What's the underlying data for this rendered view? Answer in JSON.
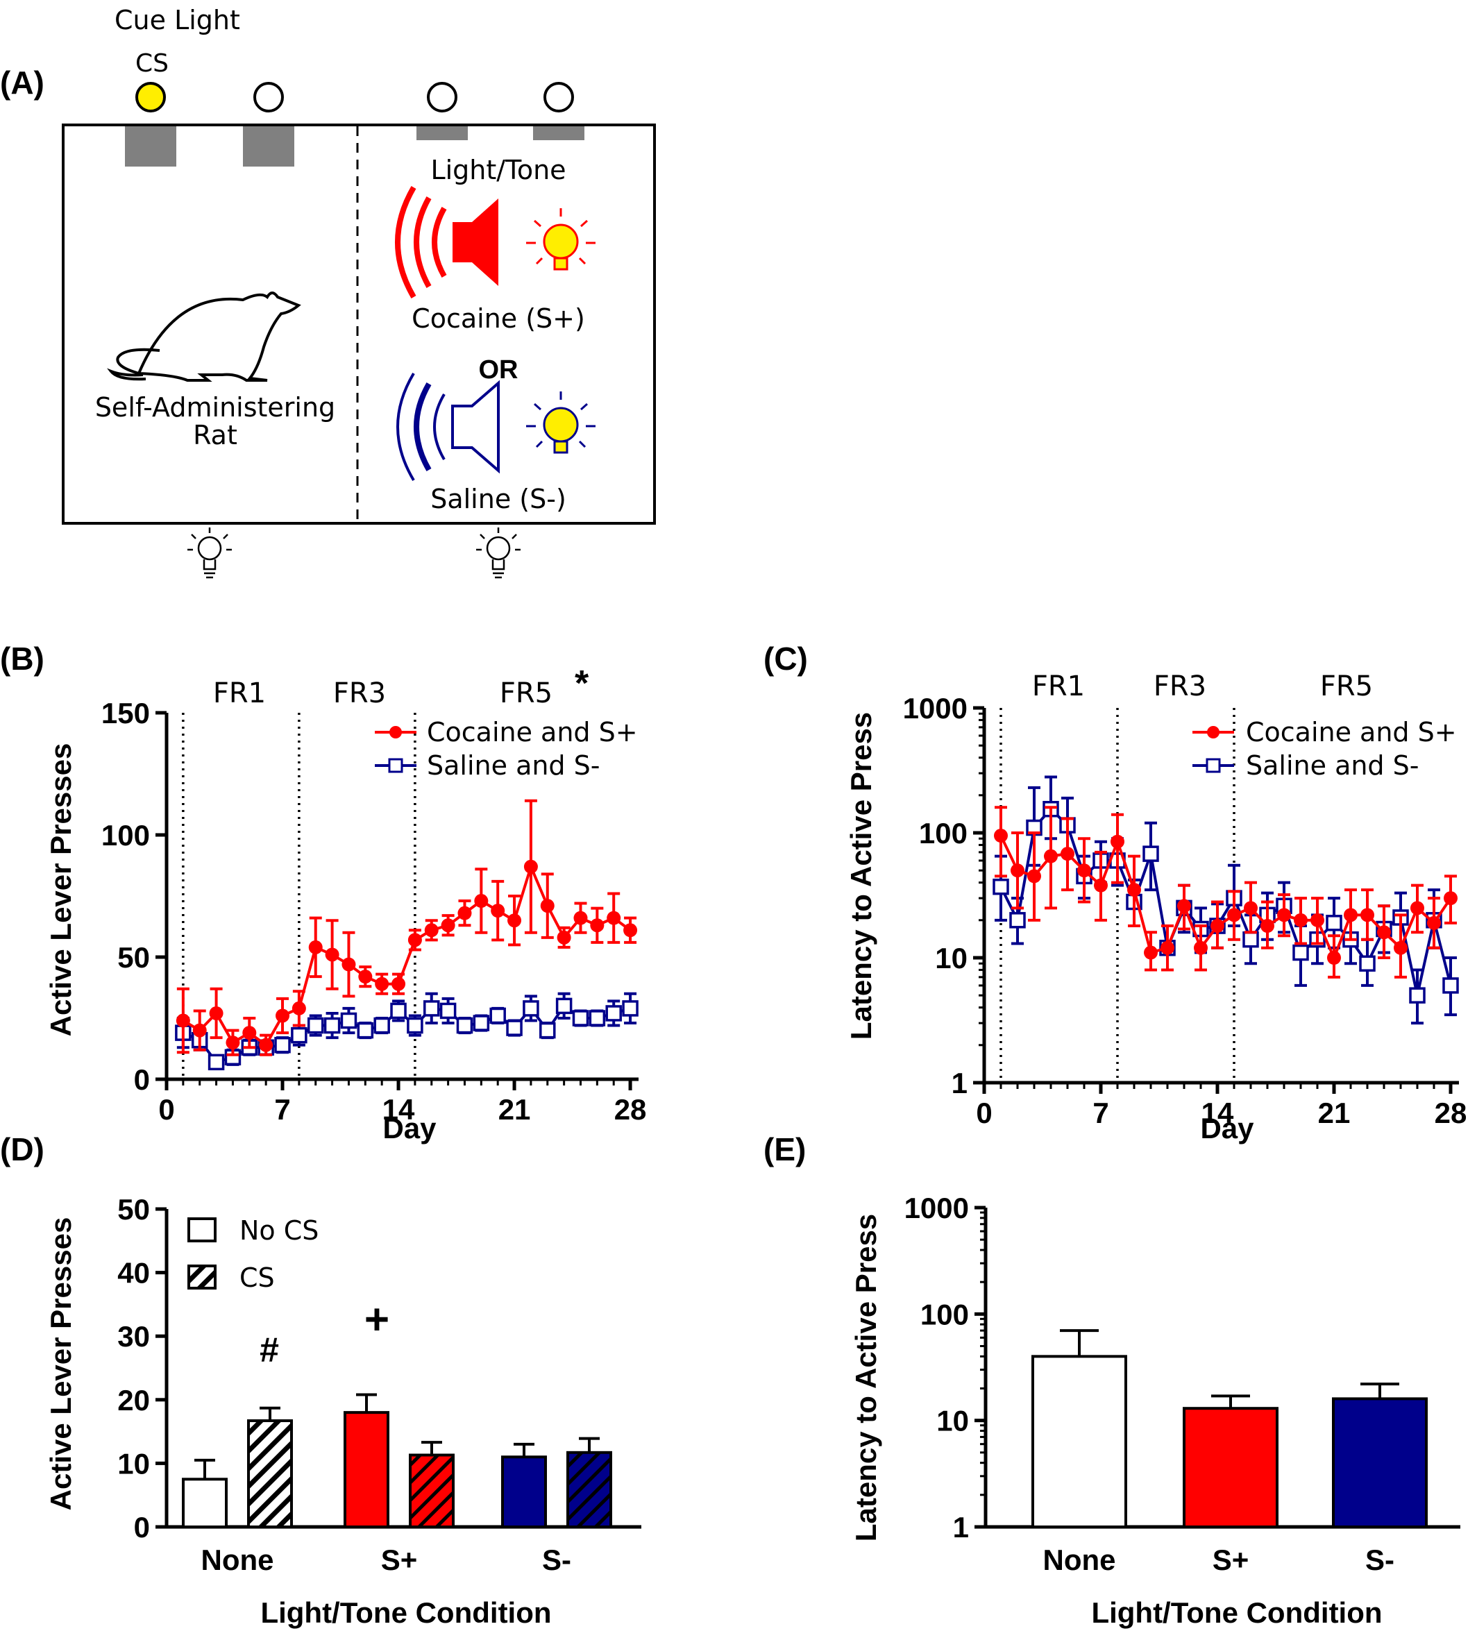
{
  "panel_a": {
    "label": "(A)",
    "cue_light_label": "Cue Light",
    "cs_label": "CS",
    "light_tone_label": "Light/Tone",
    "cocaine_label": "Cocaine (S+)",
    "or_label": "OR",
    "saline_label": "Saline (S-)",
    "rat_label_line1": "Self-Administering",
    "rat_label_line2": "Rat",
    "icons": [
      "speaker-icon",
      "lightbulb-icon",
      "rat-icon"
    ],
    "colors": {
      "cue_on": "#ffee00",
      "cocaine": "#ff0000",
      "saline": "#00008b"
    }
  },
  "chart_data": [
    {
      "panel": "(B)",
      "type": "line",
      "xlabel": "Day",
      "ylabel": "Active Lever Presses",
      "xlim": [
        0,
        28.5
      ],
      "ylim": [
        0,
        150
      ],
      "xticks": [
        0,
        7,
        14,
        21,
        28
      ],
      "yticks": [
        0,
        50,
        100,
        150
      ],
      "phases": [
        {
          "label": "FR1",
          "start": 1
        },
        {
          "label": "FR3",
          "start": 8
        },
        {
          "label": "FR5",
          "start": 15
        }
      ],
      "annotation": "*",
      "legend": "top-right",
      "series": [
        {
          "name": "Cocaine and S+",
          "color": "#ff0000",
          "marker": "filled-circle",
          "x": [
            1,
            2,
            3,
            4,
            5,
            6,
            7,
            8,
            9,
            10,
            11,
            12,
            13,
            14,
            15,
            16,
            17,
            18,
            19,
            20,
            21,
            22,
            23,
            24,
            25,
            26,
            27,
            28
          ],
          "values": [
            24,
            20,
            27,
            15,
            19,
            14,
            26,
            29,
            54,
            51,
            47,
            42,
            39,
            39,
            57,
            61,
            63,
            68,
            73,
            69,
            65,
            87,
            71,
            58,
            66,
            63,
            66,
            61
          ],
          "errors": [
            13,
            8,
            10,
            5,
            6,
            4,
            7,
            7,
            12,
            14,
            13,
            4,
            4,
            4,
            4,
            4,
            4,
            5,
            13,
            12,
            10,
            27,
            13,
            4,
            6,
            7,
            10,
            5
          ]
        },
        {
          "name": "Saline and S-",
          "color": "#00008b",
          "marker": "open-square",
          "x": [
            1,
            2,
            3,
            4,
            5,
            6,
            7,
            8,
            9,
            10,
            11,
            12,
            13,
            14,
            15,
            16,
            17,
            18,
            19,
            20,
            21,
            22,
            23,
            24,
            25,
            26,
            27,
            28
          ],
          "values": [
            19,
            16,
            7,
            9,
            13,
            13,
            14,
            18,
            22,
            22,
            24,
            20,
            22,
            28,
            22,
            29,
            28,
            22,
            23,
            26,
            21,
            29,
            20,
            30,
            25,
            25,
            27,
            29
          ],
          "errors": [
            6,
            4,
            2,
            3,
            3,
            2,
            3,
            4,
            4,
            5,
            5,
            3,
            3,
            4,
            4,
            6,
            5,
            3,
            3,
            3,
            3,
            5,
            3,
            5,
            3,
            3,
            5,
            6
          ]
        }
      ]
    },
    {
      "panel": "(C)",
      "type": "line",
      "xlabel": "Day",
      "ylabel": "Latency to Active Press",
      "xlim": [
        0,
        28.5
      ],
      "ylim": [
        1,
        1000
      ],
      "yscale": "log",
      "xticks": [
        0,
        7,
        14,
        21,
        28
      ],
      "yticks": [
        1,
        10,
        100,
        1000
      ],
      "phases": [
        {
          "label": "FR1",
          "start": 1
        },
        {
          "label": "FR3",
          "start": 8
        },
        {
          "label": "FR5",
          "start": 15
        }
      ],
      "legend": "top-right",
      "series": [
        {
          "name": "Cocaine and S+",
          "color": "#ff0000",
          "marker": "filled-circle",
          "x": [
            1,
            2,
            3,
            4,
            5,
            6,
            7,
            8,
            9,
            10,
            11,
            12,
            13,
            14,
            15,
            16,
            17,
            18,
            19,
            20,
            21,
            22,
            23,
            24,
            25,
            26,
            27,
            28
          ],
          "values": [
            95,
            50,
            45,
            65,
            68,
            50,
            38,
            85,
            35,
            11,
            12,
            26,
            12,
            18,
            22,
            25,
            18,
            22,
            20,
            20,
            10,
            22,
            22,
            16,
            12,
            25,
            19,
            30
          ],
          "errors": [
            [
              45,
              160
            ],
            [
              25,
              100
            ],
            [
              20,
              100
            ],
            [
              25,
              160
            ],
            [
              35,
              130
            ],
            [
              28,
              90
            ],
            [
              20,
              70
            ],
            [
              40,
              140
            ],
            [
              18,
              65
            ],
            [
              8,
              16
            ],
            [
              8,
              18
            ],
            [
              17,
              38
            ],
            [
              8,
              18
            ],
            [
              12,
              28
            ],
            [
              14,
              34
            ],
            [
              16,
              40
            ],
            [
              12,
              28
            ],
            [
              15,
              32
            ],
            [
              13,
              30
            ],
            [
              13,
              30
            ],
            [
              7,
              15
            ],
            [
              14,
              35
            ],
            [
              14,
              35
            ],
            [
              10,
              26
            ],
            [
              7,
              22
            ],
            [
              16,
              38
            ],
            [
              12,
              30
            ],
            [
              19,
              45
            ]
          ]
        },
        {
          "name": "Saline and S-",
          "color": "#00008b",
          "marker": "open-square",
          "x": [
            1,
            2,
            3,
            4,
            5,
            6,
            7,
            8,
            9,
            10,
            11,
            12,
            13,
            14,
            15,
            16,
            17,
            18,
            19,
            20,
            21,
            22,
            23,
            24,
            25,
            26,
            27,
            28
          ],
          "values": [
            37,
            20,
            110,
            155,
            115,
            45,
            60,
            60,
            28,
            68,
            12,
            25,
            17,
            18,
            30,
            14,
            22,
            26,
            11,
            14,
            19,
            14,
            9,
            17,
            21,
            5,
            20,
            6
          ],
          "errors": [
            [
              20,
              65
            ],
            [
              13,
              30
            ],
            [
              55,
              230
            ],
            [
              90,
              280
            ],
            [
              70,
              190
            ],
            [
              30,
              65
            ],
            [
              40,
              85
            ],
            [
              38,
              90
            ],
            [
              18,
              42
            ],
            [
              35,
              120
            ],
            [
              8,
              18
            ],
            [
              16,
              38
            ],
            [
              11,
              25
            ],
            [
              12,
              27
            ],
            [
              18,
              55
            ],
            [
              9,
              22
            ],
            [
              14,
              33
            ],
            [
              16,
              40
            ],
            [
              6,
              18
            ],
            [
              9,
              22
            ],
            [
              12,
              30
            ],
            [
              9,
              22
            ],
            [
              6,
              14
            ],
            [
              11,
              26
            ],
            [
              13,
              33
            ],
            [
              3,
              8
            ],
            [
              12,
              35
            ],
            [
              3.5,
              10
            ]
          ]
        }
      ]
    },
    {
      "panel": "(D)",
      "type": "bar",
      "xlabel": "Light/Tone Condition",
      "ylabel": "Active Lever Presses",
      "ylim": [
        0,
        50
      ],
      "yticks": [
        0,
        10,
        20,
        30,
        40,
        50
      ],
      "categories": [
        "None",
        "S+",
        "S-"
      ],
      "legend": "top-left",
      "series": [
        {
          "name": "No CS",
          "pattern": "solid",
          "values": [
            7.5,
            18,
            11
          ],
          "errors": [
            3,
            2.8,
            2
          ]
        },
        {
          "name": "CS",
          "pattern": "hatched",
          "values": [
            16.7,
            11.3,
            11.7
          ],
          "errors": [
            2,
            2,
            2.2
          ]
        }
      ],
      "bar_colors": [
        "#ffffff",
        "#ff0000",
        "#00008b"
      ],
      "annotations": [
        {
          "text": "#",
          "category": "None",
          "series": "CS"
        },
        {
          "text": "+",
          "category": "S+",
          "series": "No CS"
        }
      ]
    },
    {
      "panel": "(E)",
      "type": "bar",
      "xlabel": "Light/Tone Condition",
      "ylabel": "Latency to Active Press",
      "yscale": "log",
      "ylim": [
        1,
        1000
      ],
      "yticks": [
        1,
        10,
        100,
        1000
      ],
      "categories": [
        "None",
        "S+",
        "S-"
      ],
      "values": [
        40,
        13,
        16
      ],
      "errors": [
        30,
        4,
        6
      ],
      "bar_colors": [
        "#ffffff",
        "#ff0000",
        "#00008b"
      ]
    }
  ]
}
